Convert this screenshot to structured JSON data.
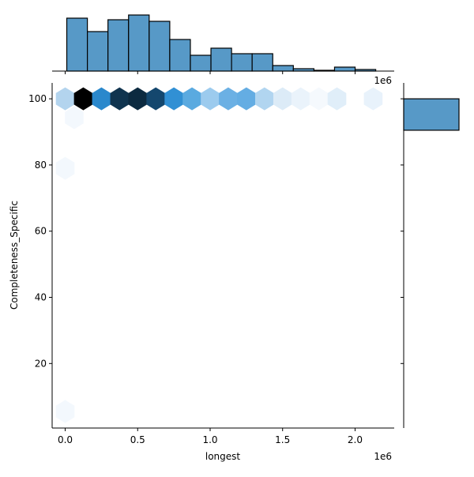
{
  "chart_data": {
    "type": "hexbin-jointplot",
    "xlabel": "longest",
    "ylabel": "Completeness_Specific",
    "x_offset_label": "1e6",
    "top_offset_label": "1e6",
    "xlim": [
      -0.09,
      2.27
    ],
    "ylim": [
      0.5,
      104.8
    ],
    "x_ticks": [
      "0.0",
      "0.5",
      "1.0",
      "1.5",
      "2.0"
    ],
    "x_tick_values": [
      0,
      0.5,
      1.0,
      1.5,
      2.0
    ],
    "y_ticks": [
      "20",
      "40",
      "60",
      "80",
      "100"
    ],
    "y_tick_values": [
      20,
      40,
      60,
      80,
      100
    ],
    "grid": false,
    "colormap": "Blues",
    "hexbins": [
      {
        "x": 0.0,
        "y": 100,
        "color": "#b3d4ee"
      },
      {
        "x": 0.125,
        "y": 100,
        "color": "#000000"
      },
      {
        "x": 0.25,
        "y": 100,
        "color": "#2a88cc"
      },
      {
        "x": 0.375,
        "y": 100,
        "color": "#10344f"
      },
      {
        "x": 0.5,
        "y": 100,
        "color": "#0c2a40"
      },
      {
        "x": 0.625,
        "y": 100,
        "color": "#14476e"
      },
      {
        "x": 0.75,
        "y": 100,
        "color": "#3190d4"
      },
      {
        "x": 0.875,
        "y": 100,
        "color": "#5aaae0"
      },
      {
        "x": 1.0,
        "y": 100,
        "color": "#9ccbee"
      },
      {
        "x": 1.125,
        "y": 100,
        "color": "#6bb0e4"
      },
      {
        "x": 1.25,
        "y": 100,
        "color": "#64ade3"
      },
      {
        "x": 1.375,
        "y": 100,
        "color": "#b1d5f0"
      },
      {
        "x": 1.5,
        "y": 100,
        "color": "#dcebf7"
      },
      {
        "x": 1.625,
        "y": 100,
        "color": "#eaf3fb"
      },
      {
        "x": 1.75,
        "y": 100,
        "color": "#f5f9fd"
      },
      {
        "x": 1.875,
        "y": 100,
        "color": "#e0eef9"
      },
      {
        "x": 2.125,
        "y": 100,
        "color": "#e8f2fb"
      },
      {
        "x": 0.0625,
        "y": 94.3,
        "color": "#f3f8fd"
      },
      {
        "x": 0.0,
        "y": 79.0,
        "color": "#f3f8fd"
      },
      {
        "x": 0.0,
        "y": 5.5,
        "color": "#f3f8fd"
      }
    ],
    "top_histogram": {
      "bin_start": 0.011,
      "bin_width": 0.1421,
      "counts": [
        67,
        50,
        65,
        71,
        63,
        40,
        20,
        29,
        22,
        22,
        7,
        3,
        1,
        5,
        2
      ],
      "color": "#5799c7"
    },
    "right_histogram": {
      "bins": [
        {
          "y0": 90.5,
          "y1": 100,
          "count": 1
        }
      ],
      "color": "#5799c7"
    }
  }
}
